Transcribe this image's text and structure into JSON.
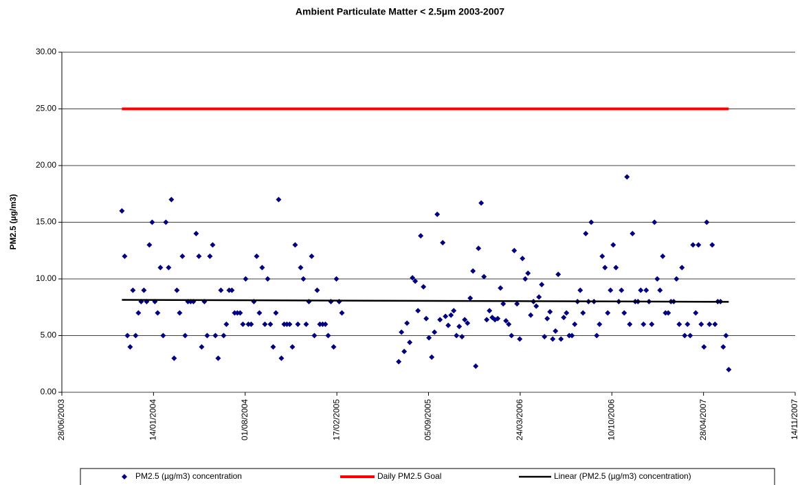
{
  "chart_data": {
    "type": "scatter",
    "title": "Ambient Particulate Matter < 2.5µm 2003-2007",
    "y_label": "PM2.5 (µg/m3)",
    "xlim": [
      "28/06/2003",
      "14/11/2007"
    ],
    "xticks": [
      "28/06/2003",
      "14/01/2004",
      "01/08/2004",
      "17/02/2005",
      "05/09/2005",
      "24/03/2006",
      "10/10/2006",
      "28/04/2007",
      "14/11/2007"
    ],
    "ylim": [
      0,
      30
    ],
    "yticks": [
      {
        "value": 0,
        "label": "0.00"
      },
      {
        "value": 5,
        "label": "5.00"
      },
      {
        "value": 10,
        "label": "10.00"
      },
      {
        "value": 15,
        "label": "15.00"
      },
      {
        "value": 20,
        "label": "20.00"
      },
      {
        "value": 25,
        "label": "25.00"
      },
      {
        "value": 30,
        "label": "30.00"
      }
    ],
    "grid": true,
    "legend": "bottom",
    "series": [
      {
        "name": "PM2.5 (µg/m3) concentration",
        "color": "#000080",
        "mode": "markers",
        "x": [
          "06/11/2003",
          "12/11/2003",
          "18/11/2003",
          "24/11/2003",
          "30/11/2003",
          "06/12/2003",
          "12/12/2003",
          "18/12/2003",
          "24/12/2003",
          "30/12/2003",
          "05/01/2004",
          "11/01/2004",
          "17/01/2004",
          "23/01/2004",
          "29/01/2004",
          "04/02/2004",
          "10/02/2004",
          "16/02/2004",
          "22/02/2004",
          "28/02/2004",
          "05/03/2004",
          "11/03/2004",
          "17/03/2004",
          "23/03/2004",
          "29/03/2004",
          "04/04/2004",
          "10/04/2004",
          "16/04/2004",
          "22/04/2004",
          "28/04/2004",
          "04/05/2004",
          "10/05/2004",
          "16/05/2004",
          "22/05/2004",
          "28/05/2004",
          "03/06/2004",
          "09/06/2004",
          "15/06/2004",
          "21/06/2004",
          "27/06/2004",
          "03/07/2004",
          "09/07/2004",
          "15/07/2004",
          "21/07/2004",
          "27/07/2004",
          "02/08/2004",
          "08/08/2004",
          "14/08/2004",
          "20/08/2004",
          "26/08/2004",
          "01/09/2004",
          "07/09/2004",
          "13/09/2004",
          "19/09/2004",
          "25/09/2004",
          "01/10/2004",
          "07/10/2004",
          "13/10/2004",
          "19/10/2004",
          "25/10/2004",
          "31/10/2004",
          "06/11/2004",
          "12/11/2004",
          "18/11/2004",
          "24/11/2004",
          "30/11/2004",
          "06/12/2004",
          "12/12/2004",
          "18/12/2004",
          "24/12/2004",
          "30/12/2004",
          "05/01/2005",
          "11/01/2005",
          "17/01/2005",
          "23/01/2005",
          "29/01/2005",
          "04/02/2005",
          "10/02/2005",
          "16/02/2005",
          "22/02/2005",
          "28/02/2005",
          "02/07/2005",
          "08/07/2005",
          "14/07/2005",
          "20/07/2005",
          "26/07/2005",
          "01/08/2005",
          "07/08/2005",
          "13/08/2005",
          "19/08/2005",
          "25/08/2005",
          "31/08/2005",
          "06/09/2005",
          "12/09/2005",
          "18/09/2005",
          "24/09/2005",
          "30/09/2005",
          "06/10/2005",
          "12/10/2005",
          "18/10/2005",
          "24/10/2005",
          "30/10/2005",
          "05/11/2005",
          "11/11/2005",
          "17/11/2005",
          "23/11/2005",
          "29/11/2005",
          "05/12/2005",
          "11/12/2005",
          "17/12/2005",
          "23/12/2005",
          "29/12/2005",
          "04/01/2006",
          "10/01/2006",
          "16/01/2006",
          "22/01/2006",
          "28/01/2006",
          "03/02/2006",
          "09/02/2006",
          "15/02/2006",
          "21/02/2006",
          "27/02/2006",
          "05/03/2006",
          "11/03/2006",
          "17/03/2006",
          "23/03/2006",
          "29/03/2006",
          "04/04/2006",
          "10/04/2006",
          "16/04/2006",
          "22/04/2006",
          "28/04/2006",
          "04/05/2006",
          "10/05/2006",
          "16/05/2006",
          "22/05/2006",
          "28/05/2006",
          "03/06/2006",
          "09/06/2006",
          "15/06/2006",
          "21/06/2006",
          "27/06/2006",
          "03/07/2006",
          "09/07/2006",
          "15/07/2006",
          "21/07/2006",
          "27/07/2006",
          "02/08/2006",
          "08/08/2006",
          "14/08/2006",
          "20/08/2006",
          "26/08/2006",
          "01/09/2006",
          "07/09/2006",
          "13/09/2006",
          "19/09/2006",
          "25/09/2006",
          "01/10/2006",
          "07/10/2006",
          "13/10/2006",
          "19/10/2006",
          "25/10/2006",
          "31/10/2006",
          "06/11/2006",
          "12/11/2006",
          "18/11/2006",
          "24/11/2006",
          "30/11/2006",
          "06/12/2006",
          "12/12/2006",
          "18/12/2006",
          "24/12/2006",
          "30/12/2006",
          "05/01/2007",
          "11/01/2007",
          "17/01/2007",
          "23/01/2007",
          "29/01/2007",
          "04/02/2007",
          "10/02/2007",
          "16/02/2007",
          "22/02/2007",
          "28/02/2007",
          "06/03/2007",
          "12/03/2007",
          "18/03/2007",
          "24/03/2007",
          "30/03/2007",
          "05/04/2007",
          "11/04/2007",
          "17/04/2007",
          "23/04/2007",
          "29/04/2007",
          "05/05/2007",
          "11/05/2007",
          "17/05/2007",
          "23/05/2007",
          "29/05/2007",
          "04/06/2007",
          "10/06/2007",
          "16/06/2007",
          "22/06/2007"
        ],
        "values": [
          16,
          12,
          5,
          4,
          9,
          5,
          7,
          8,
          9,
          8,
          13,
          15,
          8,
          7,
          11,
          5,
          15,
          11,
          17,
          3,
          9,
          7,
          12,
          5,
          8,
          8,
          8,
          14,
          12,
          4,
          8,
          5,
          12,
          13,
          5,
          3,
          9,
          5,
          6,
          9,
          9,
          7,
          7,
          7,
          6,
          10,
          6,
          6,
          8,
          12,
          7,
          11,
          6,
          10,
          6,
          4,
          7,
          17,
          3,
          6,
          6,
          6,
          4,
          13,
          6,
          11,
          10,
          6,
          8,
          12,
          5,
          9,
          6,
          6,
          6,
          5,
          8,
          4,
          10,
          8,
          7,
          2.7,
          5.3,
          3.6,
          6.1,
          4.4,
          10.1,
          9.8,
          7.2,
          13.8,
          9.3,
          6.5,
          4.8,
          3.1,
          5.3,
          15.7,
          6.4,
          13.2,
          6.7,
          5.9,
          6.8,
          7.2,
          5.0,
          5.8,
          4.9,
          6.4,
          6.1,
          8.3,
          10.7,
          2.3,
          12.7,
          16.7,
          10.2,
          6.4,
          7.2,
          6.6,
          6.4,
          6.5,
          9.2,
          7.8,
          6.3,
          6.0,
          5.0,
          12.5,
          7.8,
          4.7,
          11.8,
          10.0,
          10.5,
          6.8,
          8.0,
          7.6,
          8.4,
          9.5,
          4.9,
          6.5,
          7.1,
          4.7,
          5.4,
          10.4,
          4.7,
          6.6,
          7.0,
          5.0,
          5.0,
          6.0,
          8,
          9,
          7,
          14,
          8,
          15,
          8,
          5,
          6,
          12,
          11,
          7,
          9,
          13,
          11,
          8,
          9,
          7,
          19,
          6,
          14,
          8,
          8,
          9,
          6,
          9,
          8,
          6,
          15,
          10,
          9,
          12,
          7,
          7,
          8,
          8,
          10,
          6,
          11,
          5,
          6,
          5,
          13,
          7,
          13,
          6,
          4,
          15,
          6,
          13,
          6,
          8,
          8,
          4,
          5,
          2
        ]
      },
      {
        "name": "Daily PM2.5 Goal",
        "color": "#ff0000",
        "mode": "line",
        "x": [
          "06/11/2003",
          "22/06/2007"
        ],
        "values": [
          25,
          25
        ]
      },
      {
        "name": "Linear (PM2.5 (µg/m3) concentration)",
        "color": "#000000",
        "mode": "line",
        "x": [
          "06/11/2003",
          "22/06/2007"
        ],
        "values": [
          8.15,
          7.98
        ]
      }
    ]
  }
}
